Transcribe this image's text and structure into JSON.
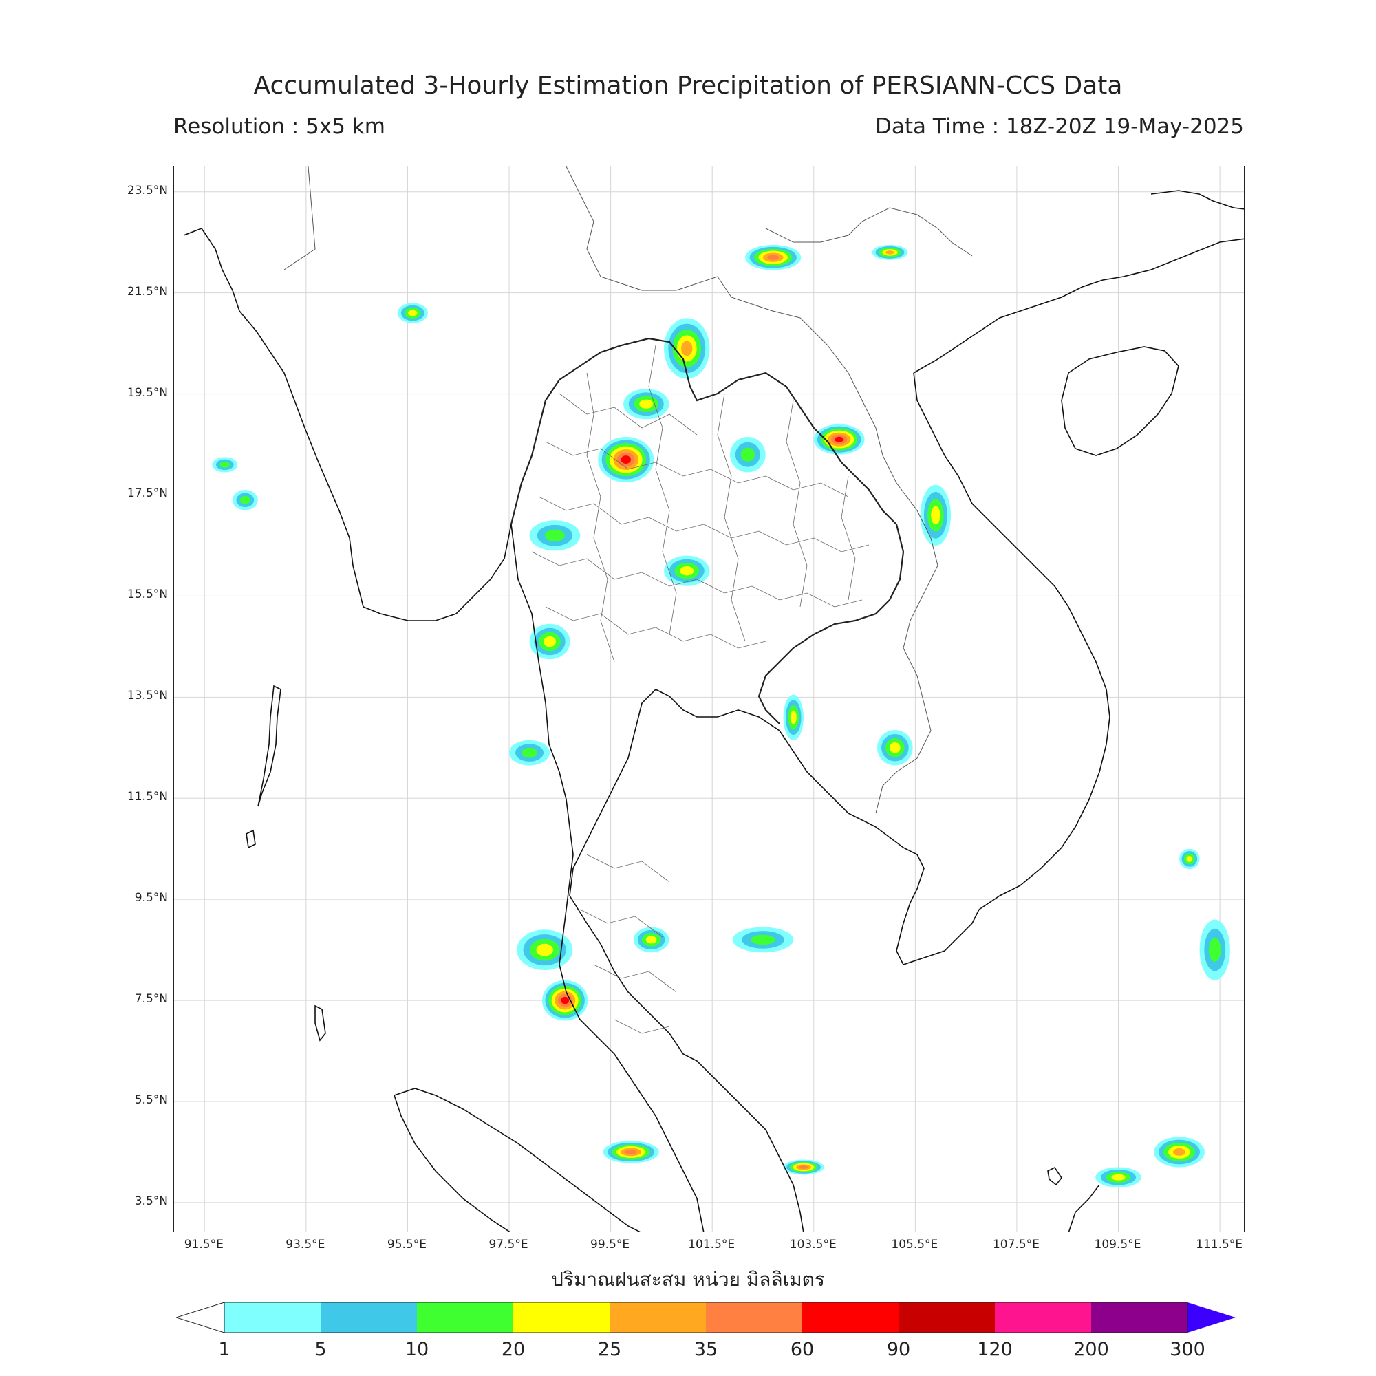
{
  "title": "Accumulated 3-Hourly Estimation Precipitation of PERSIANN-CCS Data",
  "resolution": "Resolution : 5x5 km",
  "data_time": "Data Time : 18Z-20Z 19-May-2025",
  "axis_title": "ปริมาณฝนสะสม หน่วย มิลลิเมตร",
  "lat_ticks": [
    "23.5°N",
    "21.5°N",
    "19.5°N",
    "17.5°N",
    "15.5°N",
    "13.5°N",
    "11.5°N",
    "9.5°N",
    "7.5°N",
    "5.5°N",
    "3.5°N"
  ],
  "lon_ticks": [
    "91.5°E",
    "93.5°E",
    "95.5°E",
    "97.5°E",
    "99.5°E",
    "101.5°E",
    "103.5°E",
    "105.5°E",
    "107.5°E",
    "109.5°E",
    "111.5°E"
  ],
  "extent": {
    "lon_min": 90.9,
    "lon_max": 112.0,
    "lat_min": 2.9,
    "lat_max": 24.0
  },
  "colorbar": {
    "labels": [
      "1",
      "5",
      "10",
      "20",
      "25",
      "35",
      "60",
      "90",
      "120",
      "200",
      "300"
    ],
    "colors": [
      "#80ffff",
      "#40c8e8",
      "#40ff30",
      "#ffff00",
      "#ffa820",
      "#ff8040",
      "#ff0000",
      "#c80000",
      "#ff1490",
      "#8c008c",
      "#3c00ff"
    ]
  },
  "rain_cells": [
    {
      "lon": 99.8,
      "lat": 18.2,
      "rx": 0.55,
      "ry": 0.45,
      "level": 6
    },
    {
      "lon": 100.2,
      "lat": 19.3,
      "rx": 0.45,
      "ry": 0.3,
      "level": 3
    },
    {
      "lon": 101.0,
      "lat": 20.4,
      "rx": 0.45,
      "ry": 0.6,
      "level": 4
    },
    {
      "lon": 104.0,
      "lat": 18.6,
      "rx": 0.5,
      "ry": 0.3,
      "level": 6
    },
    {
      "lon": 105.9,
      "lat": 17.1,
      "rx": 0.3,
      "ry": 0.6,
      "level": 3
    },
    {
      "lon": 102.7,
      "lat": 22.2,
      "rx": 0.55,
      "ry": 0.25,
      "level": 5
    },
    {
      "lon": 105.0,
      "lat": 22.3,
      "rx": 0.35,
      "ry": 0.15,
      "level": 4
    },
    {
      "lon": 95.6,
      "lat": 21.1,
      "rx": 0.3,
      "ry": 0.2,
      "level": 3
    },
    {
      "lon": 98.4,
      "lat": 16.7,
      "rx": 0.5,
      "ry": 0.3,
      "level": 2
    },
    {
      "lon": 98.3,
      "lat": 14.6,
      "rx": 0.4,
      "ry": 0.35,
      "level": 3
    },
    {
      "lon": 98.2,
      "lat": 8.5,
      "rx": 0.55,
      "ry": 0.4,
      "level": 3
    },
    {
      "lon": 98.6,
      "lat": 7.5,
      "rx": 0.45,
      "ry": 0.4,
      "level": 6
    },
    {
      "lon": 99.9,
      "lat": 4.5,
      "rx": 0.55,
      "ry": 0.22,
      "level": 5
    },
    {
      "lon": 103.3,
      "lat": 4.2,
      "rx": 0.4,
      "ry": 0.15,
      "level": 5
    },
    {
      "lon": 103.1,
      "lat": 13.1,
      "rx": 0.2,
      "ry": 0.45,
      "level": 3
    },
    {
      "lon": 105.1,
      "lat": 12.5,
      "rx": 0.35,
      "ry": 0.35,
      "level": 3
    },
    {
      "lon": 110.7,
      "lat": 4.5,
      "rx": 0.5,
      "ry": 0.3,
      "level": 4
    },
    {
      "lon": 109.5,
      "lat": 4.0,
      "rx": 0.45,
      "ry": 0.2,
      "level": 3
    },
    {
      "lon": 101.0,
      "lat": 16.0,
      "rx": 0.45,
      "ry": 0.3,
      "level": 3
    },
    {
      "lon": 97.9,
      "lat": 12.4,
      "rx": 0.4,
      "ry": 0.25,
      "level": 2
    },
    {
      "lon": 102.5,
      "lat": 8.7,
      "rx": 0.6,
      "ry": 0.25,
      "level": 2
    },
    {
      "lon": 91.9,
      "lat": 18.1,
      "rx": 0.25,
      "ry": 0.15,
      "level": 2
    },
    {
      "lon": 92.3,
      "lat": 17.4,
      "rx": 0.25,
      "ry": 0.2,
      "level": 2
    },
    {
      "lon": 110.9,
      "lat": 10.3,
      "rx": 0.2,
      "ry": 0.2,
      "level": 3
    },
    {
      "lon": 111.4,
      "lat": 8.5,
      "rx": 0.3,
      "ry": 0.6,
      "level": 2
    },
    {
      "lon": 100.3,
      "lat": 8.7,
      "rx": 0.35,
      "ry": 0.25,
      "level": 3
    },
    {
      "lon": 102.2,
      "lat": 18.3,
      "rx": 0.35,
      "ry": 0.35,
      "level": 2
    }
  ]
}
